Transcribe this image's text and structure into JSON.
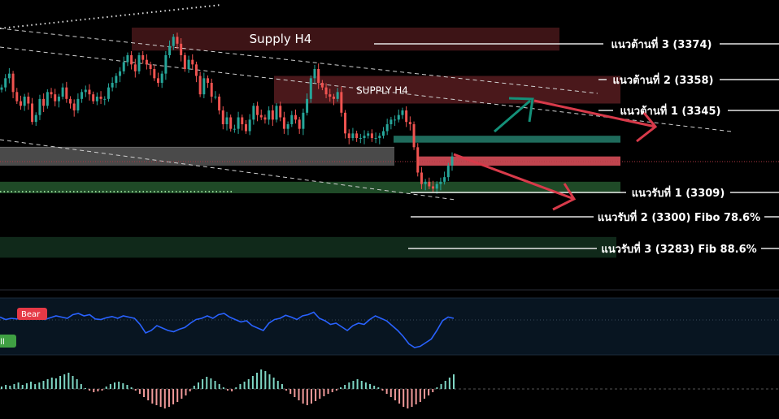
{
  "chart_data": {
    "type": "candlestick",
    "colors": {
      "background": "#000000",
      "bull_candle": "#26a69a",
      "bear_candle": "#ef5350",
      "supply_zone": "#3d1416",
      "supply_zone_inner": "#4a181b",
      "grey_zone": "#4a4a4a",
      "green_zone": "#1f4a27",
      "dark_green_zone": "#10291a",
      "teal_zone": "#1f6b5c",
      "red_zone": "#c0454f",
      "arrow_up": "#149079",
      "arrow_down": "#d83a4a",
      "osc_line": "#2962ff",
      "osc_panel": "#081521",
      "hist_pos": "#7fd6c4",
      "hist_neg": "#f19a9a"
    },
    "price_scale": {
      "min": 3270,
      "max": 3390
    },
    "zones": [
      {
        "name": "supply-h4-upper",
        "label": "Supply H4",
        "from": 3368,
        "to": 3378,
        "color": "supply_zone"
      },
      {
        "name": "supply-h4-lower",
        "label": "SUPPLY H4",
        "from": 3345,
        "to": 3357,
        "color": "supply_zone_inner"
      },
      {
        "name": "teal-zone",
        "label": "",
        "from": 3328,
        "to": 3331,
        "color": "teal_zone"
      },
      {
        "name": "grey-zone",
        "label": "",
        "from": 3318,
        "to": 3326,
        "color": "grey_zone"
      },
      {
        "name": "red-zone",
        "label": "",
        "from": 3318,
        "to": 3322,
        "color": "red_zone"
      },
      {
        "name": "green-zone",
        "label": "",
        "from": 3306,
        "to": 3311,
        "color": "green_zone"
      },
      {
        "name": "dark-green-zone",
        "label": "",
        "from": 3278,
        "to": 3287,
        "color": "dark_green_zone"
      }
    ],
    "levels": [
      {
        "label": "แนวต้านที่ 3 (3374)",
        "price": 3374
      },
      {
        "label": "แนวต้านที่ 2 (3358)",
        "price": 3358
      },
      {
        "label": "แนวต้านที่ 1 (3345)",
        "price": 3345
      },
      {
        "label": "แนวรับที่ 1 (3309)",
        "price": 3309
      },
      {
        "label": "แนวรับที่ 2 (3300) Fibo 78.6%",
        "price": 3300
      },
      {
        "label": "แนวรับที่ 3 (3283) Fib 88.6%",
        "price": 3283
      }
    ],
    "close_series": [
      3352,
      3356,
      3358,
      3350,
      3346,
      3344,
      3348,
      3345,
      3337,
      3340,
      3347,
      3344,
      3350,
      3349,
      3346,
      3348,
      3352,
      3347,
      3345,
      3342,
      3347,
      3350,
      3351,
      3349,
      3346,
      3348,
      3347,
      3347,
      3352,
      3354,
      3357,
      3359,
      3363,
      3366,
      3362,
      3359,
      3366,
      3364,
      3362,
      3360,
      3356,
      3354,
      3358,
      3366,
      3370,
      3374,
      3371,
      3366,
      3360,
      3364,
      3362,
      3357,
      3349,
      3356,
      3354,
      3348,
      3348,
      3342,
      3336,
      3339,
      3334,
      3334,
      3339,
      3336,
      3333,
      3338,
      3344,
      3340,
      3339,
      3338,
      3342,
      3338,
      3344,
      3339,
      3334,
      3336,
      3340,
      3338,
      3334,
      3341,
      3347,
      3356,
      3360,
      3354,
      3352,
      3349,
      3348,
      3347,
      3350,
      3341,
      3332,
      3330,
      3332,
      3330,
      3330,
      3331,
      3332,
      3330,
      3330,
      3331,
      3333,
      3336,
      3338,
      3338,
      3340,
      3342,
      3337,
      3336,
      3326,
      3315,
      3310,
      3311,
      3309,
      3308,
      3310,
      3311,
      3313,
      3318,
      3322
    ],
    "oscillator": {
      "badges": [
        "Bear",
        "Bull"
      ],
      "values": [
        62,
        58,
        60,
        59,
        61,
        60,
        63,
        60,
        58,
        61,
        64,
        62,
        60,
        66,
        68,
        64,
        66,
        59,
        58,
        61,
        63,
        60,
        64,
        62,
        60,
        50,
        36,
        40,
        48,
        44,
        40,
        38,
        42,
        45,
        52,
        58,
        60,
        64,
        60,
        66,
        68,
        62,
        58,
        54,
        56,
        48,
        44,
        40,
        52,
        58,
        60,
        65,
        62,
        58,
        64,
        66,
        70,
        60,
        56,
        50,
        52,
        46,
        40,
        48,
        52,
        50,
        58,
        64,
        60,
        56,
        48,
        40,
        30,
        18,
        12,
        14,
        20,
        26,
        40,
        56,
        62,
        60
      ]
    },
    "histogram": [
      0.3,
      0.5,
      0.4,
      0.6,
      0.8,
      0.5,
      0.7,
      0.9,
      0.6,
      0.8,
      1.0,
      1.2,
      1.4,
      1.3,
      1.6,
      1.8,
      2.0,
      1.6,
      1.2,
      0.6,
      0.1,
      -0.2,
      -0.4,
      -0.3,
      -0.2,
      0.3,
      0.6,
      0.8,
      0.9,
      0.7,
      0.5,
      0.2,
      -0.2,
      -0.6,
      -1.0,
      -1.4,
      -1.8,
      -2.0,
      -2.2,
      -2.4,
      -2.2,
      -1.9,
      -1.6,
      -1.2,
      -0.8,
      -0.3,
      0.4,
      0.8,
      1.2,
      1.5,
      1.3,
      1.0,
      0.6,
      0.2,
      -0.2,
      -0.3,
      0.2,
      0.6,
      0.9,
      1.2,
      1.6,
      2.0,
      2.4,
      2.2,
      1.8,
      1.4,
      1.0,
      0.6,
      -0.2,
      -0.6,
      -1.0,
      -1.4,
      -1.8,
      -2.0,
      -1.8,
      -1.5,
      -1.2,
      -0.9,
      -0.6,
      -0.4,
      -0.2,
      0.2,
      0.5,
      0.8,
      1.0,
      1.2,
      1.0,
      0.8,
      0.6,
      0.4,
      0.2,
      -0.2,
      -0.6,
      -1.0,
      -1.4,
      -1.8,
      -2.2,
      -2.4,
      -2.2,
      -1.9,
      -1.6,
      -1.2,
      -0.8,
      -0.4,
      0.2,
      0.6,
      1.0,
      1.4,
      1.8
    ]
  }
}
